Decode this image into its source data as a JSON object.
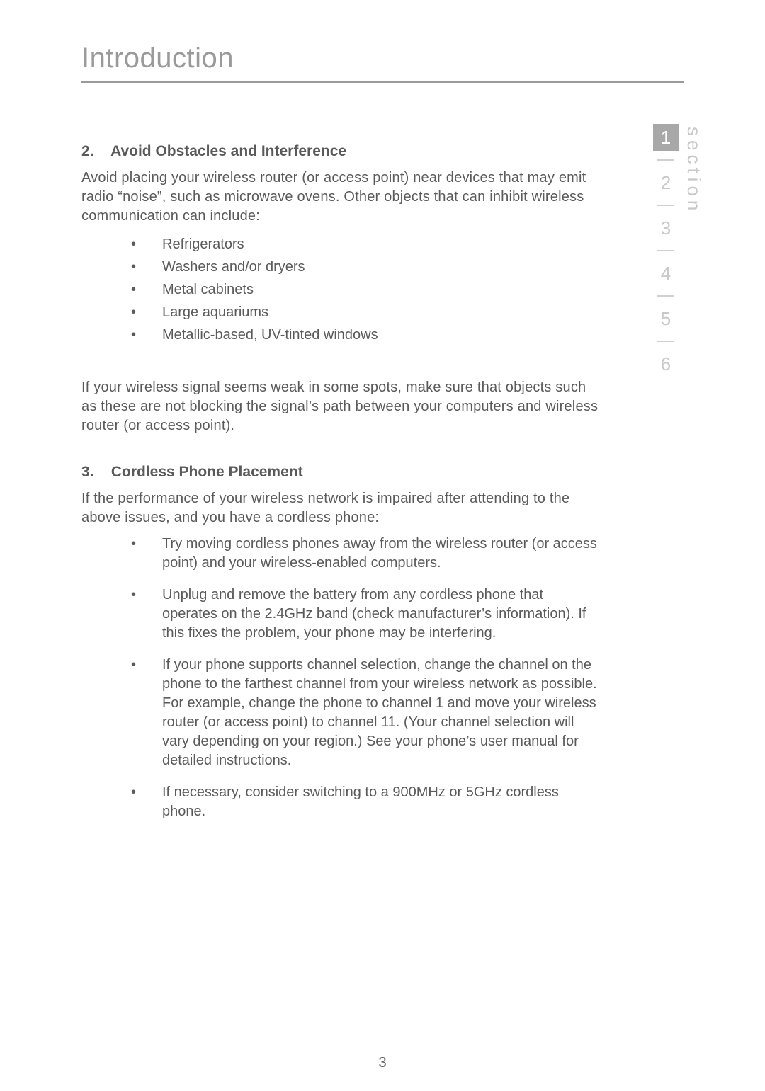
{
  "header": {
    "title": "Introduction"
  },
  "sideTab": {
    "label": "section",
    "items": [
      "1",
      "2",
      "3",
      "4",
      "5",
      "6"
    ],
    "activeIndex": 0
  },
  "section2": {
    "num": "2.",
    "title": "Avoid Obstacles and Interference",
    "intro": "Avoid placing your wireless router (or access point) near devices that may emit radio “noise”, such as microwave ovens. Other objects that can inhibit wireless communication can include:",
    "bullets": [
      "Refrigerators",
      "Washers and/or dryers",
      "Metal cabinets",
      "Large aquariums",
      "Metallic-based, UV-tinted windows"
    ],
    "outro": "If your wireless signal seems weak in some spots, make sure that objects such as these are not blocking the signal’s path between your computers and wireless router (or access point)."
  },
  "section3": {
    "num": "3.",
    "title": "Cordless Phone Placement",
    "intro": "If the performance of your wireless network is impaired after attending to the above issues, and you have a cordless phone:",
    "bullets": [
      "Try moving cordless phones away from the wireless router (or access point) and your wireless-enabled computers.",
      "Unplug and remove the battery from any cordless phone that operates on the 2.4GHz band (check manufacturer’s information). If this fixes the problem, your phone may be interfering.",
      "If your phone supports channel selection, change the channel on the phone to the farthest channel from your wireless network as possible. For example, change the phone to channel 1 and move your wireless router (or access point) to channel 11. (Your channel selection will vary depending on your region.) See your phone’s user manual for detailed instructions.",
      "If necessary, consider switching to a 900MHz or 5GHz cordless phone."
    ]
  },
  "pageNumber": "3"
}
